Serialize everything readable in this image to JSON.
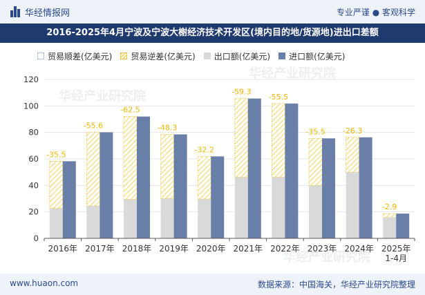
{
  "header": {
    "brand": "华经情报网",
    "tagline": "专业严谨 ● 客观科学"
  },
  "watermark": "华经产业研究院",
  "chart_data": {
    "type": "bar",
    "title": "2016-2025年4月宁波及宁波大榭经济技术开发区(境内目的地/货源地)进出口差额",
    "categories": [
      "2016年",
      "2017年",
      "2018年",
      "2019年",
      "2020年",
      "2021年",
      "2022年",
      "2023年",
      "2024年",
      "2025年\n1-4月"
    ],
    "series": [
      {
        "name": "贸易顺差(亿美元)",
        "values": [
          null,
          null,
          null,
          null,
          null,
          null,
          null,
          null,
          null,
          null
        ]
      },
      {
        "name": "贸易逆差(亿美元)",
        "values": [
          -35.5,
          -55.6,
          -62.5,
          -48.3,
          -32.2,
          -59.3,
          -55.5,
          -35.5,
          -26.3,
          -2.9
        ]
      },
      {
        "name": "出口额(亿美元)",
        "values": [
          22.7,
          24.5,
          29.5,
          30.2,
          29.7,
          46.3,
          46.3,
          40.0,
          50.0,
          15.8
        ]
      },
      {
        "name": "进口额(亿美元)",
        "values": [
          58.2,
          80.1,
          92.0,
          78.5,
          61.9,
          105.6,
          101.8,
          75.5,
          76.3,
          18.7
        ]
      }
    ],
    "ylim": [
      0,
      120
    ],
    "yticks": [
      0,
      20,
      40,
      60,
      80,
      100,
      120
    ],
    "grid": true,
    "legend_position": "top-left",
    "colors": {
      "surplus": "#a8b8d8",
      "deficit": "#f7d96a",
      "deficit_label": "#f0b800",
      "export": "#d9d9d9",
      "import": "#6a7fa8"
    }
  },
  "footer": {
    "site": "www.huaon.com",
    "source": "数据来源：中国海关，华经产业研究院整理"
  }
}
